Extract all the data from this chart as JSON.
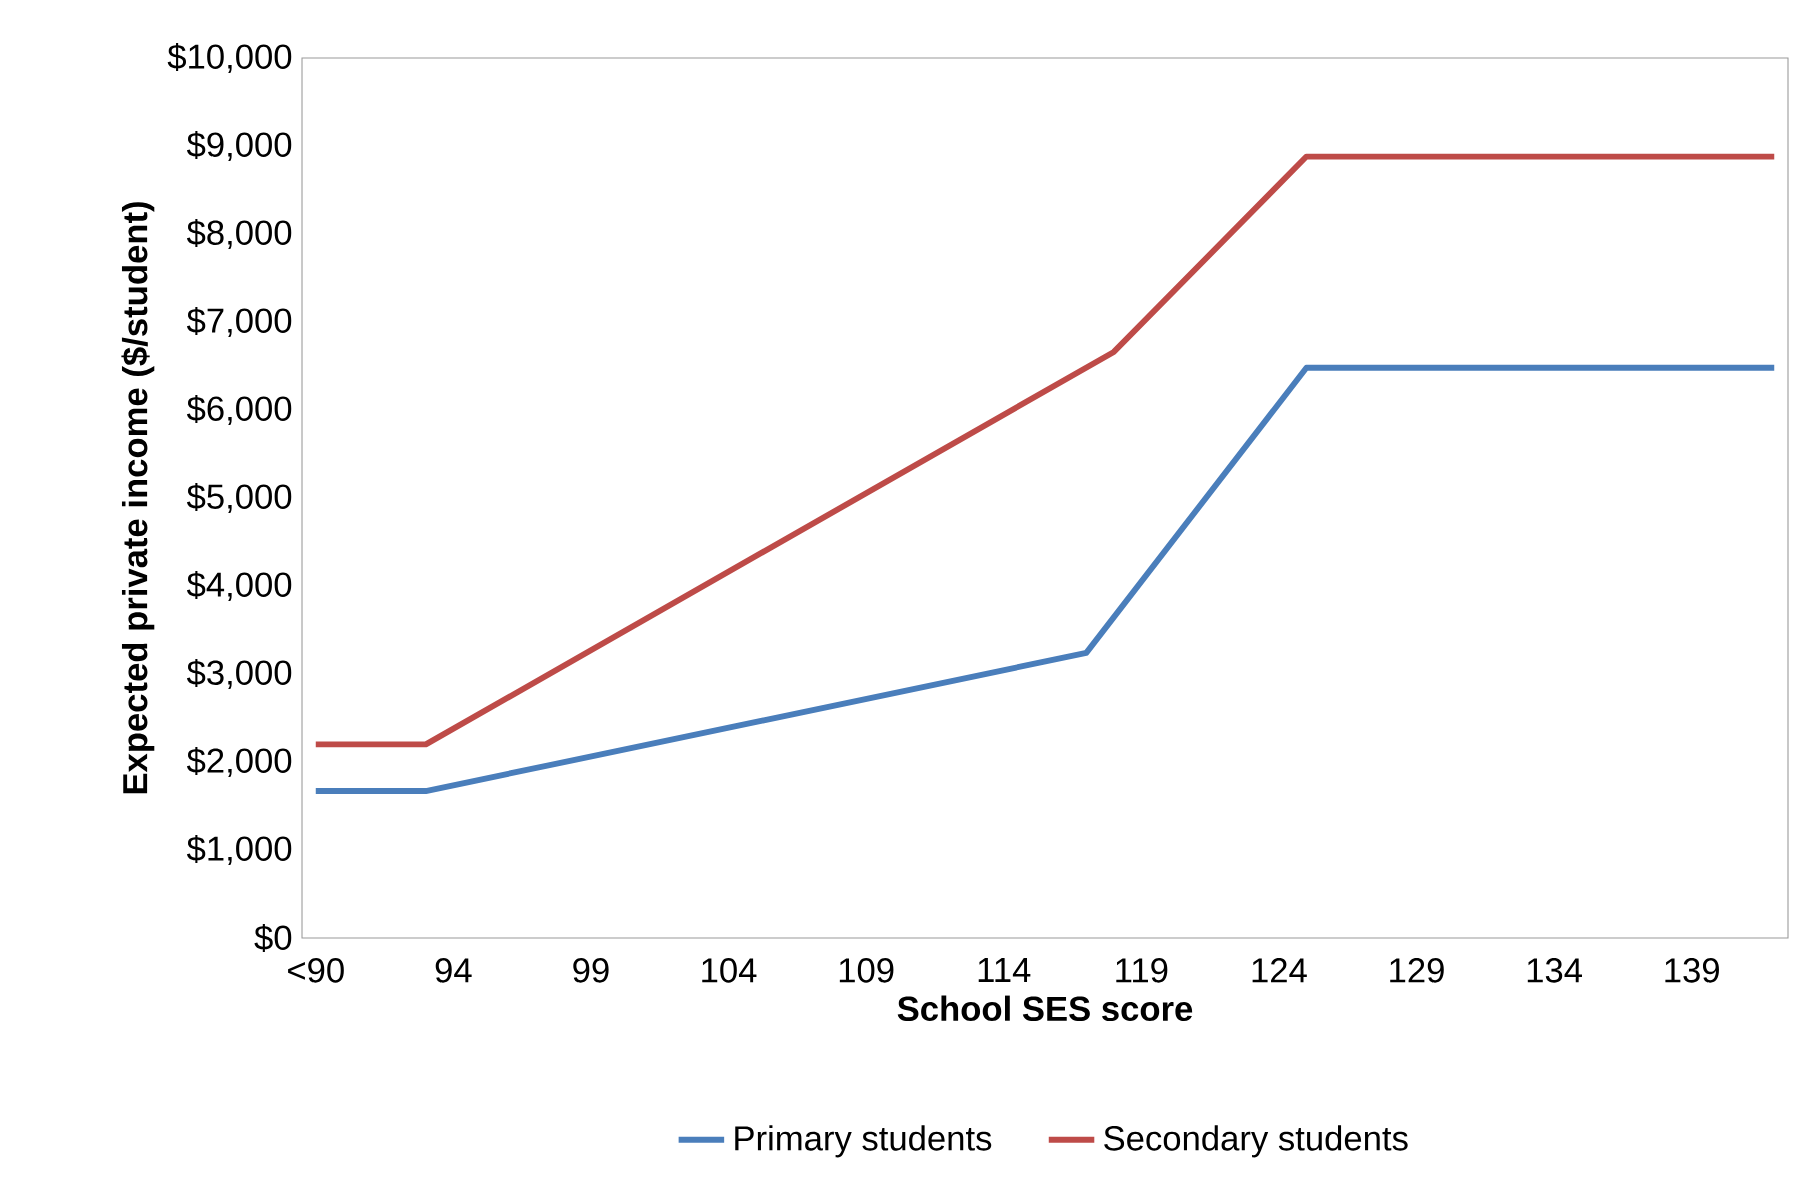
{
  "chart_data": {
    "type": "line",
    "xlabel": "School SES score",
    "ylabel": "Expected private income ($/student)",
    "xlim": [
      88.5,
      142.5
    ],
    "xticks": [
      {
        "value": 89,
        "label": "<90"
      },
      94,
      99,
      104,
      109,
      114,
      119,
      124,
      129,
      134,
      139
    ],
    "ylim": [
      0,
      10000
    ],
    "yticks": [
      {
        "value": 0,
        "label": "$0"
      },
      {
        "value": 1000,
        "label": "$1,000"
      },
      {
        "value": 2000,
        "label": "$2,000"
      },
      {
        "value": 3000,
        "label": "$3,000"
      },
      {
        "value": 4000,
        "label": "$4,000"
      },
      {
        "value": 5000,
        "label": "$5,000"
      },
      {
        "value": 6000,
        "label": "$6,000"
      },
      {
        "value": 7000,
        "label": "$7,000"
      },
      {
        "value": 8000,
        "label": "$8,000"
      },
      {
        "value": 9000,
        "label": "$9,000"
      },
      {
        "value": 10000,
        "label": "$10,000"
      }
    ],
    "grid": false,
    "legend": "bottom",
    "marker": "none",
    "line_style": "solid",
    "series": [
      {
        "name": "Primary students",
        "color": "#4a7ebb",
        "x": [
          89,
          93,
          117,
          125,
          142
        ],
        "values": [
          1670,
          1670,
          3240,
          6480,
          6480
        ]
      },
      {
        "name": "Secondary students",
        "color": "#be4b48",
        "x": [
          89,
          93,
          118,
          125,
          142
        ],
        "values": [
          2200,
          2200,
          6660,
          8880,
          8880
        ]
      }
    ]
  }
}
